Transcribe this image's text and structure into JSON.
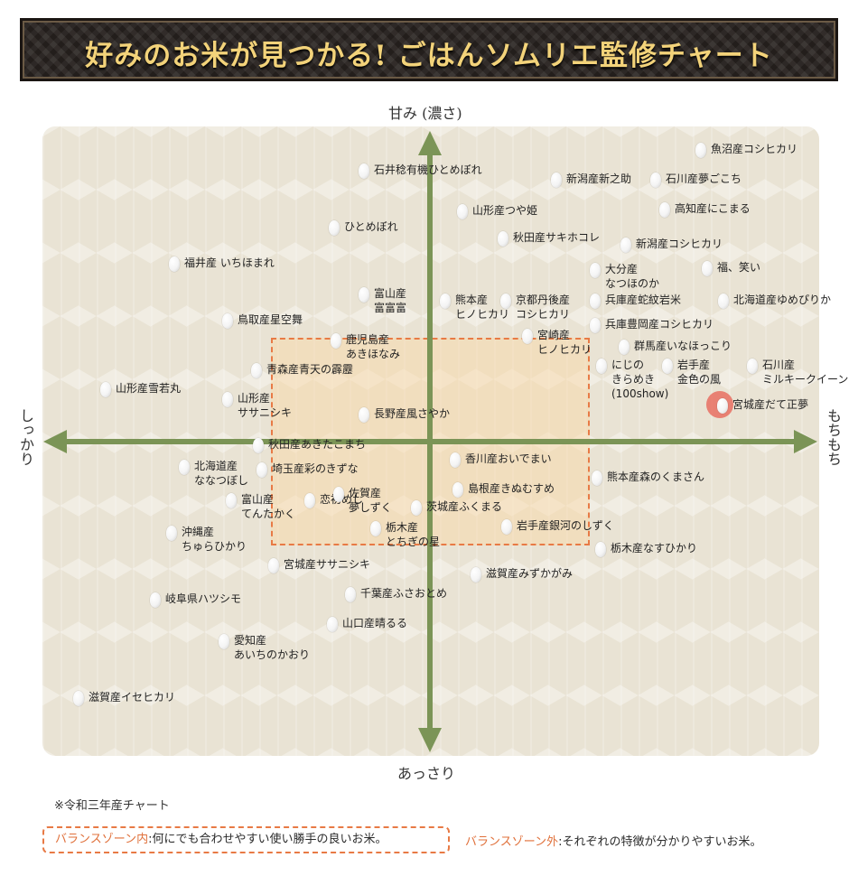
{
  "header": {
    "title": "好みのお米が見つかる! ごはんソムリエ監修チャート"
  },
  "axes": {
    "top": "甘み (濃さ)",
    "bottom": "あっさり",
    "left": "しっかり",
    "right": "もちもち"
  },
  "rice_varieties": [
    {
      "lines": [
        "魚沼産コシヒカリ"
      ]
    },
    {
      "lines": [
        "石井稔有機ひとめぼれ"
      ]
    },
    {
      "lines": [
        "新潟産新之助"
      ]
    },
    {
      "lines": [
        "石川産夢ごこち"
      ]
    },
    {
      "lines": [
        "山形産つや姫"
      ]
    },
    {
      "lines": [
        "高知産にこまる"
      ]
    },
    {
      "lines": [
        "ひとめぼれ"
      ]
    },
    {
      "lines": [
        "秋田産サキホコレ"
      ]
    },
    {
      "lines": [
        "新潟産コシヒカリ"
      ]
    },
    {
      "lines": [
        "福井産 いちほまれ"
      ]
    },
    {
      "lines": [
        "大分産",
        "なつほのか"
      ]
    },
    {
      "lines": [
        "福、笑い"
      ]
    },
    {
      "lines": [
        "富山産",
        "富富富"
      ]
    },
    {
      "lines": [
        "熊本産",
        "ヒノヒカリ"
      ]
    },
    {
      "lines": [
        "京都丹後産",
        "コシヒカリ"
      ]
    },
    {
      "lines": [
        "兵庫産蛇紋岩米"
      ]
    },
    {
      "lines": [
        "北海道産ゆめぴりか"
      ]
    },
    {
      "lines": [
        "鳥取産星空舞"
      ]
    },
    {
      "lines": [
        "兵庫豊岡産コシヒカリ"
      ]
    },
    {
      "lines": [
        "鹿児島産",
        "あきほなみ"
      ]
    },
    {
      "lines": [
        "宮崎産",
        "ヒノヒカリ"
      ]
    },
    {
      "lines": [
        "群馬産いなほっこり"
      ]
    },
    {
      "lines": [
        "青森産青天の霹靂"
      ]
    },
    {
      "lines": [
        "にじの",
        "きらめき",
        "(100show)"
      ]
    },
    {
      "lines": [
        "岩手産",
        "金色の風"
      ]
    },
    {
      "lines": [
        "石川産",
        "ミルキークイーン"
      ]
    },
    {
      "lines": [
        "山形産雪若丸"
      ]
    },
    {
      "lines": [
        "山形産",
        "ササニシキ"
      ]
    },
    {
      "lines": [
        "長野産風さやか"
      ]
    },
    {
      "lines": [
        "宮城産だて正夢"
      ]
    },
    {
      "lines": [
        "秋田産あきたこまち"
      ]
    },
    {
      "lines": [
        "香川産おいでまい"
      ]
    },
    {
      "lines": [
        "北海道産",
        "ななつぼし"
      ]
    },
    {
      "lines": [
        "埼玉産彩のきずな"
      ]
    },
    {
      "lines": [
        "熊本産森のくまさん"
      ]
    },
    {
      "lines": [
        "島根産きぬむすめ"
      ]
    },
    {
      "lines": [
        "富山産",
        "てんたかく"
      ]
    },
    {
      "lines": [
        "恋初めし"
      ]
    },
    {
      "lines": [
        "佐賀産",
        "夢しずく"
      ]
    },
    {
      "lines": [
        "茨城産ふくまる"
      ]
    },
    {
      "lines": [
        "岩手産銀河のしずく"
      ]
    },
    {
      "lines": [
        "沖縄産",
        "ちゅらひかり"
      ]
    },
    {
      "lines": [
        "栃木産",
        "とちぎの星"
      ]
    },
    {
      "lines": [
        "栃木産なすひかり"
      ]
    },
    {
      "lines": [
        "宮城産ササニシキ"
      ]
    },
    {
      "lines": [
        "滋賀産みずかがみ"
      ]
    },
    {
      "lines": [
        "千葉産ふさおとめ"
      ]
    },
    {
      "lines": [
        "岐阜県ハツシモ"
      ]
    },
    {
      "lines": [
        "山口産晴るる"
      ]
    },
    {
      "lines": [
        "愛知産",
        "あいちのかおり"
      ]
    },
    {
      "lines": [
        "滋賀産イセヒカリ"
      ]
    }
  ],
  "footer": {
    "note": "※令和三年産チャート",
    "legend_in_name": "バランスゾーン内",
    "legend_in_text": ":何にでも合わせやすい使い勝手の良いお米。",
    "legend_out_name": "バランスゾーン外",
    "legend_out_text": ":それぞれの特徴が分かりやすいお米。"
  }
}
